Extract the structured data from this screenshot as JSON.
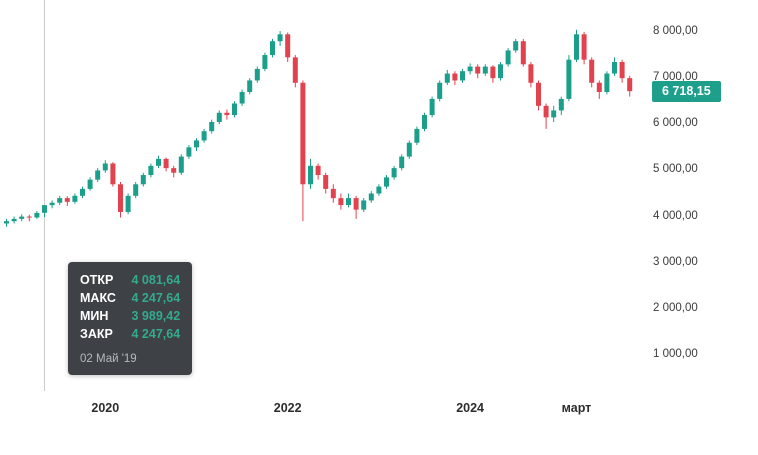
{
  "chart_data": {
    "type": "candlestick",
    "title": "",
    "up_color": "#1b9e8a",
    "down_color": "#e2414e",
    "background": "#ffffff",
    "crosshair_color": "#cccccc",
    "badge_color": "#1d9f8c",
    "y_axis": {
      "min": 1000,
      "max": 8000,
      "tick_step": 1000,
      "ticks": [
        {
          "value": 8000,
          "label": "8 000,00"
        },
        {
          "value": 7000,
          "label": "7 000,00"
        },
        {
          "value": 6000,
          "label": "6 000,00"
        },
        {
          "value": 5000,
          "label": "5 000,00"
        },
        {
          "value": 4000,
          "label": "4 000,00"
        },
        {
          "value": 3000,
          "label": "3 000,00"
        },
        {
          "value": 2000,
          "label": "2 000,00"
        },
        {
          "value": 1000,
          "label": "1 000,00"
        }
      ]
    },
    "x_labels": [
      {
        "label": "2020",
        "index": 13
      },
      {
        "label": "2022",
        "index": 37
      },
      {
        "label": "2024",
        "index": 61
      },
      {
        "label": "март",
        "index": 75
      }
    ],
    "crosshair_index": 5,
    "last_price": 6718.15,
    "last_price_label": "6 718,15",
    "candles": [
      [
        3850,
        3950,
        3780,
        3900
      ],
      [
        3900,
        4000,
        3850,
        3950
      ],
      [
        3950,
        4050,
        3900,
        4000
      ],
      [
        4000,
        4040,
        3900,
        3980
      ],
      [
        3980,
        4120,
        3950,
        4080
      ],
      [
        4081.64,
        4247.64,
        3989.42,
        4247.64
      ],
      [
        4247.64,
        4350,
        4180,
        4300
      ],
      [
        4300,
        4450,
        4250,
        4400
      ],
      [
        4400,
        4440,
        4230,
        4320
      ],
      [
        4320,
        4500,
        4280,
        4450
      ],
      [
        4450,
        4650,
        4400,
        4600
      ],
      [
        4600,
        4850,
        4560,
        4800
      ],
      [
        4800,
        5050,
        4750,
        5000
      ],
      [
        5000,
        5220,
        4950,
        5150
      ],
      [
        5150,
        5180,
        4650,
        4700
      ],
      [
        4700,
        4750,
        3980,
        4100
      ],
      [
        4100,
        4500,
        4050,
        4450
      ],
      [
        4450,
        4750,
        4400,
        4700
      ],
      [
        4700,
        4950,
        4650,
        4900
      ],
      [
        4900,
        5150,
        4850,
        5100
      ],
      [
        5100,
        5320,
        5050,
        5250
      ],
      [
        5250,
        5280,
        4980,
        5050
      ],
      [
        5050,
        5100,
        4850,
        4950
      ],
      [
        4950,
        5350,
        4900,
        5300
      ],
      [
        5300,
        5550,
        5250,
        5500
      ],
      [
        5500,
        5700,
        5420,
        5650
      ],
      [
        5650,
        5900,
        5600,
        5850
      ],
      [
        5850,
        6100,
        5800,
        6050
      ],
      [
        6050,
        6300,
        6000,
        6250
      ],
      [
        6250,
        6320,
        6100,
        6200
      ],
      [
        6200,
        6500,
        6150,
        6450
      ],
      [
        6450,
        6750,
        6400,
        6700
      ],
      [
        6700,
        7000,
        6650,
        6950
      ],
      [
        6950,
        7250,
        6900,
        7200
      ],
      [
        7200,
        7550,
        7150,
        7500
      ],
      [
        7500,
        7850,
        7450,
        7800
      ],
      [
        7800,
        8020,
        7700,
        7950
      ],
      [
        7950,
        7990,
        7350,
        7450
      ],
      [
        7450,
        7500,
        6800,
        6900
      ],
      [
        6900,
        6950,
        3900,
        4700
      ],
      [
        4700,
        5250,
        4600,
        5100
      ],
      [
        5100,
        5150,
        4800,
        4900
      ],
      [
        4900,
        4950,
        4500,
        4600
      ],
      [
        4600,
        4700,
        4300,
        4400
      ],
      [
        4400,
        4500,
        4150,
        4250
      ],
      [
        4250,
        4500,
        4200,
        4400
      ],
      [
        4400,
        4450,
        3950,
        4150
      ],
      [
        4150,
        4400,
        4100,
        4350
      ],
      [
        4350,
        4550,
        4300,
        4500
      ],
      [
        4500,
        4700,
        4450,
        4650
      ],
      [
        4650,
        4900,
        4600,
        4850
      ],
      [
        4850,
        5100,
        4800,
        5050
      ],
      [
        5050,
        5350,
        5000,
        5300
      ],
      [
        5300,
        5650,
        5250,
        5600
      ],
      [
        5600,
        5950,
        5550,
        5900
      ],
      [
        5900,
        6250,
        5850,
        6200
      ],
      [
        6200,
        6600,
        6150,
        6550
      ],
      [
        6550,
        6950,
        6500,
        6900
      ],
      [
        6900,
        7180,
        6850,
        7100
      ],
      [
        7100,
        7150,
        6850,
        6950
      ],
      [
        6950,
        7200,
        6900,
        7150
      ],
      [
        7150,
        7320,
        7080,
        7250
      ],
      [
        7250,
        7300,
        7000,
        7100
      ],
      [
        7100,
        7300,
        7050,
        7250
      ],
      [
        7250,
        7280,
        6900,
        7000
      ],
      [
        7000,
        7350,
        6950,
        7300
      ],
      [
        7300,
        7650,
        7250,
        7600
      ],
      [
        7600,
        7850,
        7550,
        7800
      ],
      [
        7800,
        7850,
        7250,
        7300
      ],
      [
        7300,
        7350,
        6800,
        6900
      ],
      [
        6900,
        6950,
        6300,
        6400
      ],
      [
        6400,
        6450,
        5900,
        6150
      ],
      [
        6150,
        6400,
        6050,
        6300
      ],
      [
        6300,
        6600,
        6200,
        6550
      ],
      [
        6550,
        7500,
        6500,
        7400
      ],
      [
        7400,
        8050,
        7350,
        7950
      ],
      [
        7950,
        8000,
        7300,
        7400
      ],
      [
        7400,
        7450,
        6800,
        6900
      ],
      [
        6900,
        6950,
        6550,
        6700
      ],
      [
        6700,
        7150,
        6650,
        7100
      ],
      [
        7100,
        7450,
        7050,
        7350
      ],
      [
        7350,
        7400,
        6900,
        7000
      ],
      [
        7000,
        7050,
        6600,
        6718.15
      ]
    ]
  },
  "tooltip": {
    "rows": [
      {
        "label": "ОТКР",
        "value": "4 081,64"
      },
      {
        "label": "МАКС",
        "value": "4 247,64"
      },
      {
        "label": "МИН",
        "value": "3 989,42"
      },
      {
        "label": "ЗАКР",
        "value": "4 247,64"
      }
    ],
    "date": "02 Май '19"
  }
}
